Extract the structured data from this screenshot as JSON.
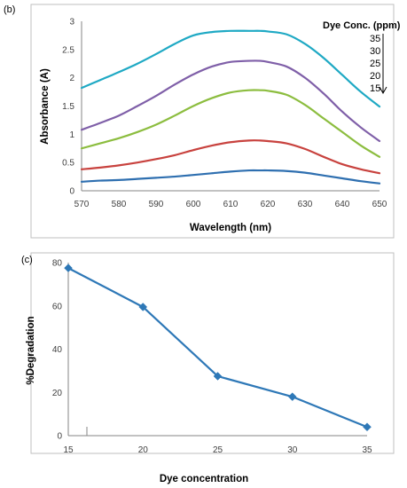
{
  "chart_data": [
    {
      "panel_label": "(b)",
      "type": "line",
      "xlabel": "Wavelength (nm)",
      "ylabel": "Absorbance (A)",
      "xlim": [
        570,
        650
      ],
      "ylim": [
        0,
        3
      ],
      "x_ticks": [
        "570",
        "580",
        "590",
        "600",
        "610",
        "620",
        "630",
        "640",
        "650"
      ],
      "y_ticks": [
        "0",
        "0.5",
        "1",
        "1.5",
        "2",
        "2.5",
        "3"
      ],
      "grid": false,
      "legend": {
        "title": "Dye Conc. (ppm)",
        "placement": "top-right",
        "entries": [
          "35",
          "30",
          "25",
          "20",
          "15"
        ]
      },
      "x": [
        570,
        575,
        580,
        585,
        590,
        595,
        600,
        605,
        610,
        615,
        618,
        620,
        625,
        630,
        635,
        640,
        645,
        650
      ],
      "series": [
        {
          "color": "#1fa9c4",
          "values": [
            1.82,
            1.96,
            2.1,
            2.25,
            2.42,
            2.6,
            2.75,
            2.81,
            2.83,
            2.83,
            2.83,
            2.82,
            2.77,
            2.6,
            2.35,
            2.05,
            1.75,
            1.49
          ]
        },
        {
          "color": "#7f5fa8",
          "values": [
            1.08,
            1.2,
            1.33,
            1.5,
            1.68,
            1.88,
            2.06,
            2.2,
            2.28,
            2.3,
            2.3,
            2.28,
            2.2,
            2.0,
            1.72,
            1.4,
            1.12,
            0.88
          ]
        },
        {
          "color": "#8cbd3f",
          "values": [
            0.75,
            0.84,
            0.93,
            1.04,
            1.17,
            1.33,
            1.5,
            1.64,
            1.74,
            1.78,
            1.78,
            1.77,
            1.7,
            1.52,
            1.28,
            1.04,
            0.8,
            0.6
          ]
        },
        {
          "color": "#c8423e",
          "values": [
            0.38,
            0.41,
            0.45,
            0.5,
            0.56,
            0.63,
            0.72,
            0.8,
            0.86,
            0.89,
            0.89,
            0.88,
            0.84,
            0.74,
            0.6,
            0.47,
            0.38,
            0.31
          ]
        },
        {
          "color": "#2e6fb0",
          "values": [
            0.16,
            0.18,
            0.19,
            0.21,
            0.23,
            0.25,
            0.28,
            0.31,
            0.34,
            0.36,
            0.36,
            0.36,
            0.35,
            0.32,
            0.27,
            0.22,
            0.17,
            0.13
          ]
        }
      ]
    },
    {
      "panel_label": "(c)",
      "type": "line",
      "xlabel": "Dye concentration",
      "ylabel": "%Degradation",
      "xlim": [
        15,
        35
      ],
      "ylim": [
        0,
        80
      ],
      "x_ticks": [
        "15",
        "20",
        "25",
        "30",
        "35"
      ],
      "y_ticks": [
        "0",
        "20",
        "40",
        "60",
        "80"
      ],
      "grid": false,
      "marker": "diamond",
      "x": [
        15,
        20,
        25,
        30,
        35
      ],
      "series": [
        {
          "color": "#2e78b7",
          "values": [
            77.5,
            59.5,
            27.5,
            18,
            4
          ]
        }
      ]
    }
  ]
}
